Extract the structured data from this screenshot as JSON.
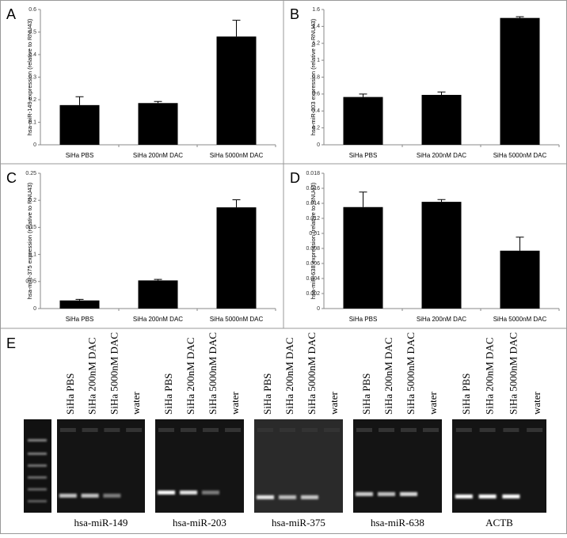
{
  "chart_data": [
    {
      "type": "bar",
      "panel": "A",
      "ylabel": "hsa-miR-149 expression (relative to RNU43)",
      "categories": [
        "SiHa PBS",
        "SiHa 200nM DAC",
        "SiHa 5000nM DAC"
      ],
      "values": [
        0.176,
        0.185,
        0.48
      ],
      "errors": [
        0.037,
        0.007,
        0.072
      ],
      "color": "#000000",
      "ylim": [
        0,
        0.6
      ],
      "yticks": [
        0,
        0.1,
        0.2,
        0.3,
        0.4,
        0.5,
        0.6
      ]
    },
    {
      "type": "bar",
      "panel": "B",
      "ylabel": "hsa-miR-203 expression (relative to RNU43)",
      "categories": [
        "SiHa PBS",
        "SiHa 200nM DAC",
        "SiHa 5000nM DAC"
      ],
      "values": [
        0.565,
        0.59,
        1.5
      ],
      "errors": [
        0.035,
        0.035,
        0.015
      ],
      "color": "#000000",
      "ylim": [
        0,
        1.6
      ],
      "yticks": [
        0,
        0.2,
        0.4,
        0.6,
        0.8,
        1,
        1.2,
        1.4,
        1.6
      ]
    },
    {
      "type": "bar",
      "panel": "C",
      "ylabel": "hsa-miR-375 expression (relative to RNU43)",
      "categories": [
        "SiHa PBS",
        "SiHa 200nM DAC",
        "SiHa 5000nM DAC"
      ],
      "values": [
        0.015,
        0.052,
        0.187
      ],
      "errors": [
        0.002,
        0.002,
        0.014
      ],
      "color": "#000000",
      "ylim": [
        0,
        0.25
      ],
      "yticks": [
        0,
        0.05,
        0.1,
        0.15,
        0.2,
        0.25
      ]
    },
    {
      "type": "bar",
      "panel": "D",
      "ylabel": "hsa-miR-638 expression (relative to RNU43)",
      "categories": [
        "SiHa PBS",
        "SiHa 200nM DAC",
        "SiHa 5000nM DAC"
      ],
      "values": [
        0.0135,
        0.0142,
        0.0077
      ],
      "errors": [
        0.002,
        0.0003,
        0.0018
      ],
      "color": "#000000",
      "ylim": [
        0,
        0.018
      ],
      "yticks": [
        0,
        0.002,
        0.004,
        0.006,
        0.008,
        0.01,
        0.012,
        0.014,
        0.016,
        0.018
      ]
    }
  ],
  "gel_panel": {
    "panel": "E",
    "lanes": [
      "SiHa PBS",
      "SiHa 200nM DAC",
      "SiHa 5000nM DAC",
      "water"
    ],
    "gels": [
      "hsa-miR-149",
      "hsa-miR-203",
      "hsa-miR-375",
      "hsa-miR-638",
      "ACTB"
    ]
  }
}
